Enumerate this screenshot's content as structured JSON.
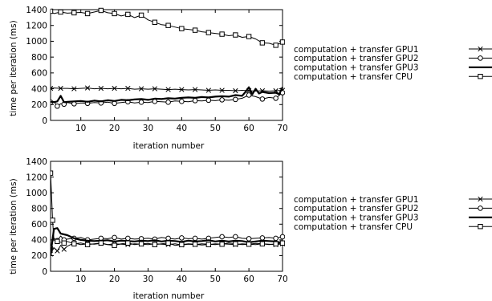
{
  "chart_data": [
    {
      "type": "line",
      "title": "",
      "xlabel": "iteration number",
      "ylabel": "time per iteration (ms)",
      "xlim": [
        1,
        70
      ],
      "ylim": [
        0,
        1400
      ],
      "xticks": [
        10,
        20,
        30,
        40,
        50,
        60,
        70
      ],
      "yticks": [
        0,
        200,
        400,
        600,
        800,
        1000,
        1200,
        1400
      ],
      "legend": "right",
      "series": [
        {
          "name": "computation + transfer GPU1",
          "marker": "cross",
          "style": "thin",
          "x": [
            1,
            2,
            4,
            6,
            8,
            10,
            12,
            14,
            16,
            18,
            20,
            22,
            24,
            26,
            28,
            30,
            32,
            34,
            36,
            38,
            40,
            42,
            44,
            46,
            48,
            50,
            52,
            54,
            56,
            58,
            60,
            62,
            64,
            66,
            68,
            70
          ],
          "y": [
            405,
            410,
            405,
            405,
            400,
            405,
            410,
            400,
            405,
            400,
            405,
            400,
            405,
            395,
            400,
            395,
            400,
            395,
            390,
            395,
            390,
            385,
            390,
            385,
            380,
            385,
            380,
            380,
            375,
            380,
            375,
            370,
            375,
            370,
            375,
            380
          ]
        },
        {
          "name": "computation + transfer GPU2",
          "marker": "circle",
          "style": "thin",
          "x": [
            1,
            2,
            3,
            4,
            5,
            6,
            8,
            10,
            12,
            14,
            16,
            18,
            20,
            22,
            24,
            26,
            28,
            30,
            32,
            34,
            36,
            38,
            40,
            42,
            44,
            46,
            48,
            50,
            52,
            54,
            56,
            58,
            60,
            62,
            64,
            66,
            68,
            70
          ],
          "y": [
            230,
            240,
            180,
            210,
            205,
            225,
            210,
            220,
            215,
            225,
            220,
            230,
            215,
            225,
            235,
            220,
            230,
            225,
            240,
            235,
            230,
            245,
            240,
            235,
            250,
            245,
            255,
            250,
            260,
            255,
            265,
            280,
            320,
            300,
            270,
            290,
            280,
            350
          ]
        },
        {
          "name": "computation + transfer GPU3",
          "marker": "none",
          "style": "thick",
          "x": [
            1,
            2,
            3,
            4,
            5,
            6,
            8,
            10,
            12,
            14,
            16,
            18,
            20,
            22,
            24,
            26,
            28,
            30,
            32,
            34,
            36,
            38,
            40,
            42,
            44,
            46,
            48,
            50,
            52,
            54,
            56,
            58,
            59,
            60,
            61,
            62,
            63,
            64,
            66,
            68,
            69,
            70
          ],
          "y": [
            235,
            230,
            240,
            310,
            230,
            235,
            240,
            245,
            235,
            250,
            240,
            255,
            245,
            260,
            255,
            265,
            270,
            260,
            275,
            270,
            280,
            275,
            285,
            290,
            285,
            295,
            290,
            300,
            305,
            300,
            320,
            310,
            360,
            420,
            330,
            400,
            340,
            360,
            345,
            350,
            330,
            420
          ]
        },
        {
          "name": "computation + transfer CPU",
          "marker": "square",
          "style": "thin",
          "x": [
            1,
            2,
            4,
            6,
            8,
            10,
            12,
            14,
            16,
            18,
            20,
            22,
            24,
            26,
            28,
            30,
            32,
            34,
            36,
            38,
            40,
            42,
            44,
            46,
            48,
            50,
            52,
            54,
            56,
            58,
            60,
            62,
            64,
            66,
            68,
            70
          ],
          "y": [
            1380,
            1350,
            1370,
            1355,
            1360,
            1365,
            1350,
            1370,
            1390,
            1360,
            1350,
            1320,
            1340,
            1300,
            1330,
            1270,
            1240,
            1210,
            1200,
            1180,
            1160,
            1150,
            1140,
            1120,
            1110,
            1100,
            1090,
            1070,
            1080,
            1050,
            1060,
            1030,
            980,
            975,
            950,
            990
          ]
        }
      ]
    },
    {
      "type": "line",
      "title": "",
      "xlabel": "iteration number",
      "ylabel": "time per iteration (ms)",
      "xlim": [
        1,
        70
      ],
      "ylim": [
        0,
        1400
      ],
      "xticks": [
        10,
        20,
        30,
        40,
        50,
        60,
        70
      ],
      "yticks": [
        0,
        200,
        400,
        600,
        800,
        1000,
        1200,
        1400
      ],
      "legend": "right",
      "series": [
        {
          "name": "computation + transfer GPU1",
          "marker": "cross",
          "style": "thin",
          "x": [
            1,
            2,
            3,
            4,
            5,
            6,
            8,
            10,
            12,
            14,
            16,
            18,
            20,
            22,
            24,
            26,
            28,
            30,
            32,
            34,
            36,
            38,
            40,
            42,
            44,
            46,
            48,
            50,
            52,
            54,
            56,
            58,
            60,
            62,
            64,
            66,
            68,
            70
          ],
          "y": [
            220,
            300,
            260,
            330,
            280,
            320,
            360,
            340,
            350,
            345,
            355,
            340,
            350,
            345,
            340,
            350,
            345,
            340,
            350,
            345,
            340,
            350,
            335,
            345,
            340,
            350,
            345,
            340,
            350,
            345,
            340,
            350,
            345,
            340,
            350,
            345,
            340,
            350
          ]
        },
        {
          "name": "computation + transfer GPU2",
          "marker": "circle",
          "style": "thin",
          "x": [
            1,
            2,
            3,
            4,
            5,
            6,
            8,
            10,
            12,
            14,
            16,
            18,
            20,
            22,
            24,
            26,
            28,
            30,
            32,
            34,
            36,
            38,
            40,
            42,
            44,
            46,
            48,
            50,
            52,
            54,
            56,
            58,
            60,
            62,
            64,
            66,
            68,
            70
          ],
          "y": [
            300,
            420,
            390,
            450,
            400,
            410,
            420,
            430,
            400,
            410,
            420,
            415,
            430,
            410,
            420,
            410,
            415,
            420,
            410,
            430,
            420,
            410,
            425,
            415,
            420,
            410,
            420,
            430,
            440,
            430,
            440,
            420,
            415,
            420,
            425,
            430,
            420,
            440
          ]
        },
        {
          "name": "computation + transfer GPU3",
          "marker": "none",
          "style": "thick",
          "x": [
            1,
            2,
            3,
            4,
            5,
            6,
            8,
            10,
            12,
            14,
            16,
            18,
            20,
            22,
            24,
            26,
            28,
            30,
            32,
            34,
            36,
            38,
            40,
            42,
            44,
            46,
            48,
            50,
            52,
            54,
            56,
            58,
            60,
            62,
            64,
            66,
            68,
            70
          ],
          "y": [
            210,
            540,
            550,
            480,
            470,
            460,
            420,
            400,
            390,
            385,
            390,
            395,
            380,
            390,
            385,
            380,
            390,
            385,
            395,
            380,
            390,
            385,
            375,
            390,
            380,
            385,
            395,
            380,
            390,
            380,
            390,
            385,
            370,
            380,
            390,
            385,
            380,
            360
          ]
        },
        {
          "name": "computation + transfer CPU",
          "marker": "square",
          "style": "thin",
          "x": [
            1,
            1.3,
            1.6,
            2,
            3,
            4,
            5,
            6,
            8,
            10,
            12,
            14,
            16,
            18,
            20,
            22,
            24,
            26,
            28,
            30,
            32,
            34,
            36,
            38,
            40,
            42,
            44,
            46,
            48,
            50,
            52,
            54,
            56,
            58,
            60,
            62,
            64,
            66,
            68,
            70
          ],
          "y": [
            1250,
            950,
            650,
            400,
            380,
            370,
            360,
            380,
            350,
            360,
            340,
            350,
            360,
            340,
            330,
            350,
            360,
            340,
            350,
            355,
            340,
            350,
            360,
            330,
            340,
            350,
            345,
            335,
            340,
            350,
            345,
            360,
            350,
            340,
            345,
            355,
            350,
            340,
            350,
            360
          ]
        }
      ]
    }
  ]
}
